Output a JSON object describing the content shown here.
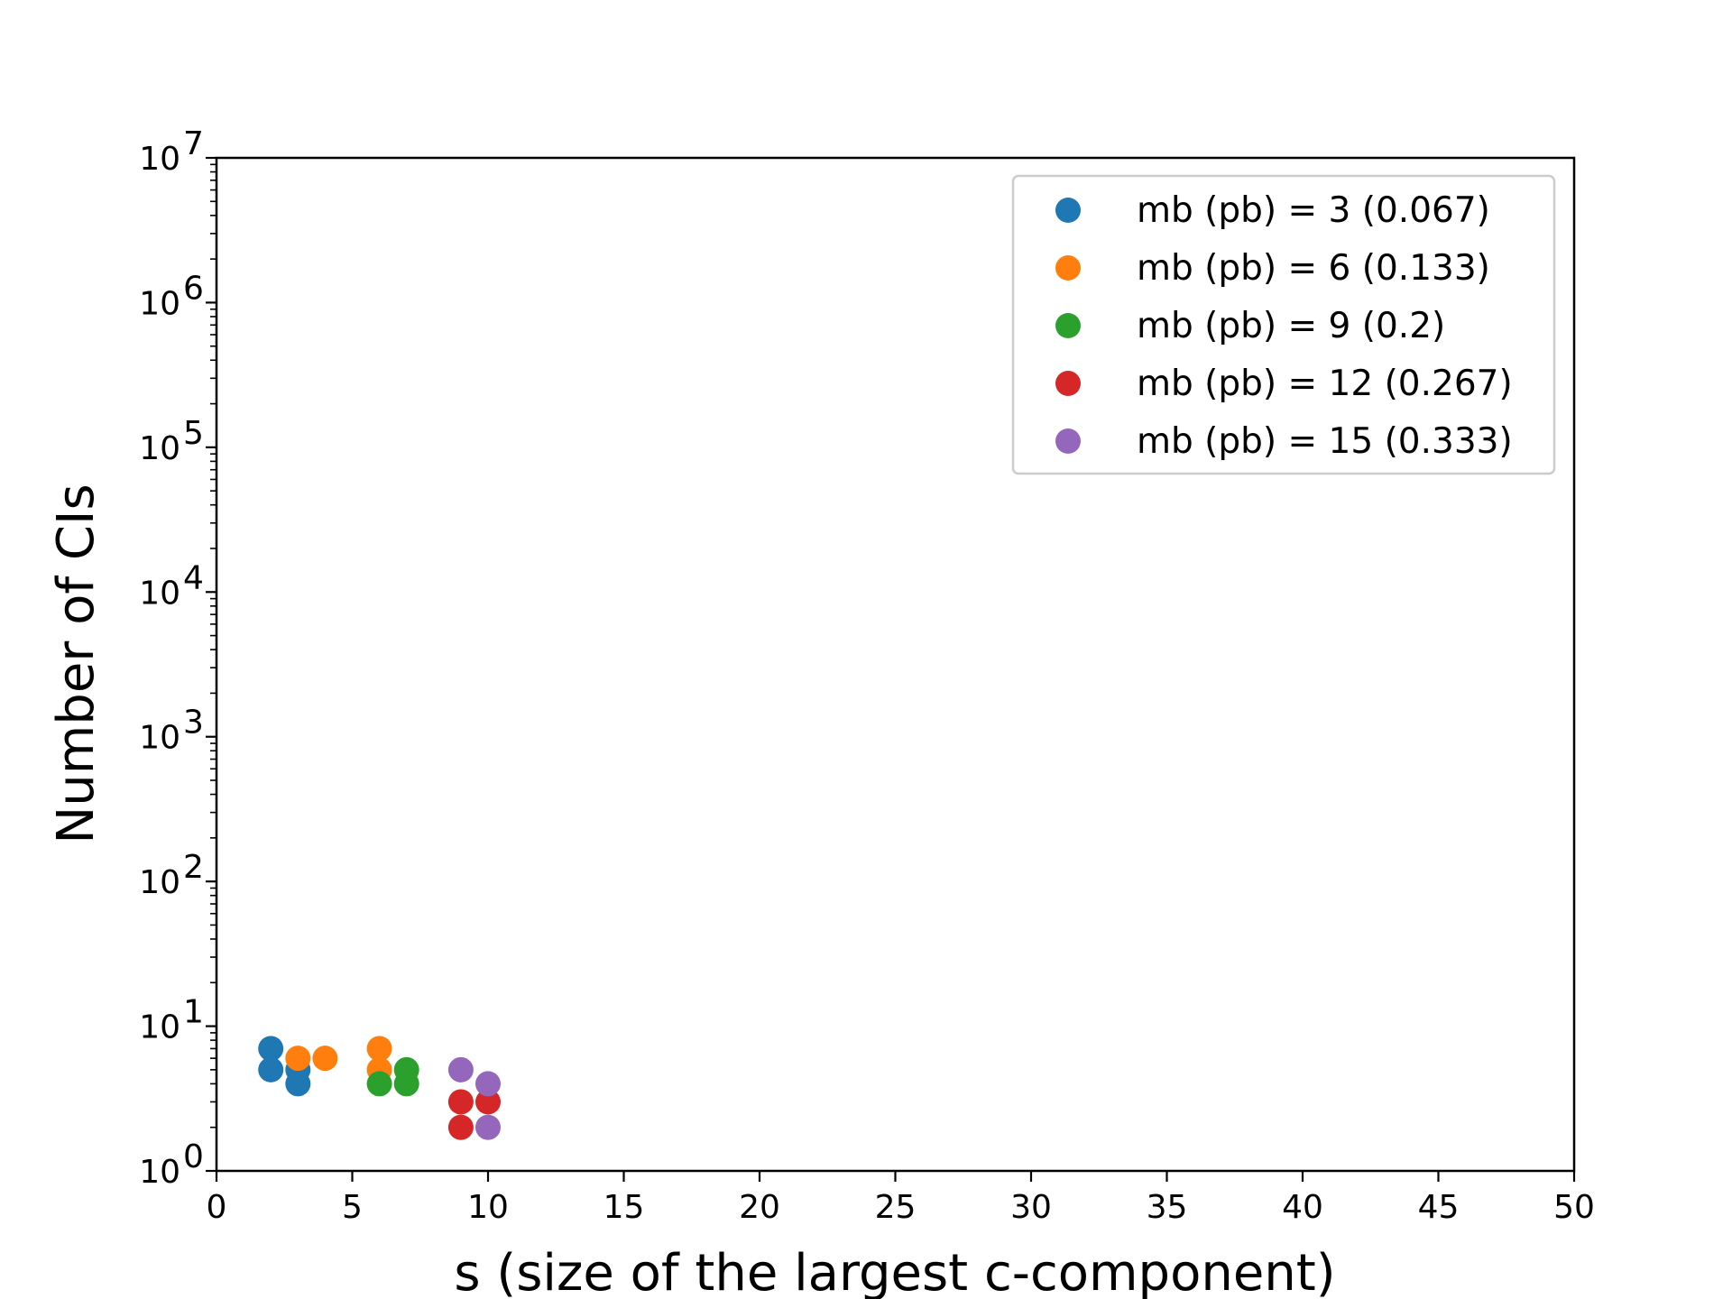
{
  "chart_data": {
    "type": "scatter",
    "title": "",
    "xlabel": "s (size of the largest c-component)",
    "ylabel": "Number of CIs",
    "xlim": [
      0,
      50
    ],
    "ylim": [
      1,
      10000000
    ],
    "yscale": "log",
    "x_ticks": [
      "0",
      "5",
      "10",
      "15",
      "20",
      "25",
      "30",
      "35",
      "40",
      "45",
      "50"
    ],
    "y_tick_base": "10",
    "y_tick_exponents": [
      "0",
      "1",
      "2",
      "3",
      "4",
      "5",
      "6",
      "7"
    ],
    "legend_position": "top-right",
    "grid": false,
    "series": [
      {
        "name": "mb (pb) = 3 (0.067)",
        "color": "#1f77b4",
        "points": [
          [
            2,
            7
          ],
          [
            2,
            5
          ],
          [
            3,
            4
          ],
          [
            3,
            5
          ]
        ]
      },
      {
        "name": "mb (pb) = 6 (0.133)",
        "color": "#ff7f0e",
        "points": [
          [
            3,
            6
          ],
          [
            4,
            6
          ],
          [
            6,
            7
          ],
          [
            6,
            5
          ]
        ]
      },
      {
        "name": "mb (pb) = 9 (0.2)",
        "color": "#2ca02c",
        "points": [
          [
            6,
            4
          ],
          [
            7,
            5
          ],
          [
            7,
            4
          ]
        ]
      },
      {
        "name": "mb (pb) = 12 (0.267)",
        "color": "#d62728",
        "points": [
          [
            9,
            3
          ],
          [
            9,
            2
          ],
          [
            10,
            3
          ]
        ]
      },
      {
        "name": "mb (pb) = 15 (0.333)",
        "color": "#9467bd",
        "points": [
          [
            9,
            5
          ],
          [
            10,
            4
          ],
          [
            10,
            2
          ]
        ]
      }
    ]
  }
}
